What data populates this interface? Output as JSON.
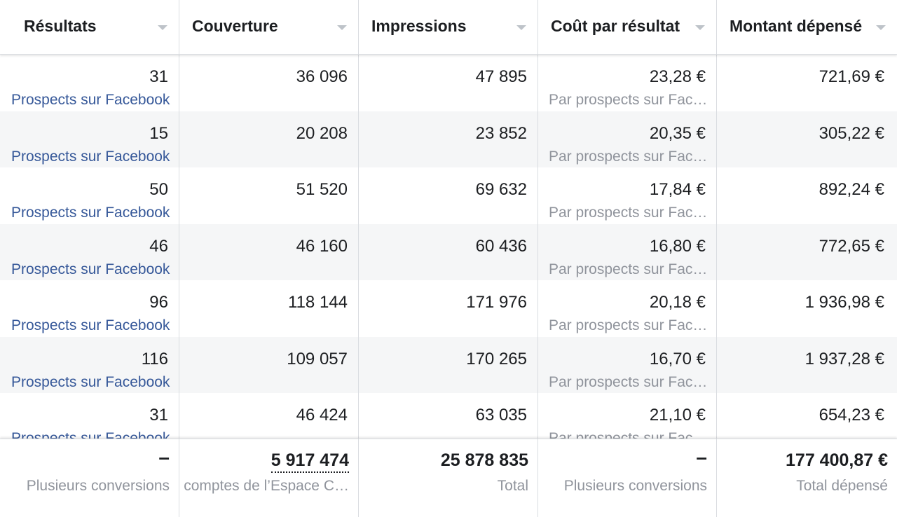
{
  "columns": [
    {
      "label": "Résultats"
    },
    {
      "label": "Couverture"
    },
    {
      "label": "Impressions"
    },
    {
      "label": "Coût par résultat"
    },
    {
      "label": "Montant dépensé"
    }
  ],
  "rows": [
    {
      "results": "31",
      "results_type": "Prospects sur Facebook",
      "reach": "36 096",
      "impressions": "47 895",
      "cost": "23,28 €",
      "cost_type": "Par prospects sur Fac…",
      "spent": "721,69 €"
    },
    {
      "results": "15",
      "results_type": "Prospects sur Facebook",
      "reach": "20 208",
      "impressions": "23 852",
      "cost": "20,35 €",
      "cost_type": "Par prospects sur Fac…",
      "spent": "305,22 €"
    },
    {
      "results": "50",
      "results_type": "Prospects sur Facebook",
      "reach": "51 520",
      "impressions": "69 632",
      "cost": "17,84 €",
      "cost_type": "Par prospects sur Fac…",
      "spent": "892,24 €"
    },
    {
      "results": "46",
      "results_type": "Prospects sur Facebook",
      "reach": "46 160",
      "impressions": "60 436",
      "cost": "16,80 €",
      "cost_type": "Par prospects sur Fac…",
      "spent": "772,65 €"
    },
    {
      "results": "96",
      "results_type": "Prospects sur Facebook",
      "reach": "118 144",
      "impressions": "171 976",
      "cost": "20,18 €",
      "cost_type": "Par prospects sur Fac…",
      "spent": "1 936,98 €"
    },
    {
      "results": "116",
      "results_type": "Prospects sur Facebook",
      "reach": "109 057",
      "impressions": "170 265",
      "cost": "16,70 €",
      "cost_type": "Par prospects sur Fac…",
      "spent": "1 937,28 €"
    },
    {
      "results": "31",
      "results_type": "Prospects sur Facebook",
      "reach": "46 424",
      "impressions": "63 035",
      "cost": "21,10 €",
      "cost_type": "Par prospects sur Fac…",
      "spent": "654,23 €"
    }
  ],
  "footer": {
    "results": {
      "value": "–",
      "label": "Plusieurs conversions"
    },
    "reach": {
      "value": "5 917 474",
      "label": "comptes de l’Espace C…"
    },
    "impressions": {
      "value": "25 878 835",
      "label": "Total"
    },
    "cost": {
      "value": "–",
      "label": "Plusieurs conversions"
    },
    "spent": {
      "value": "177 400,87 €",
      "label": "Total dépensé"
    }
  }
}
